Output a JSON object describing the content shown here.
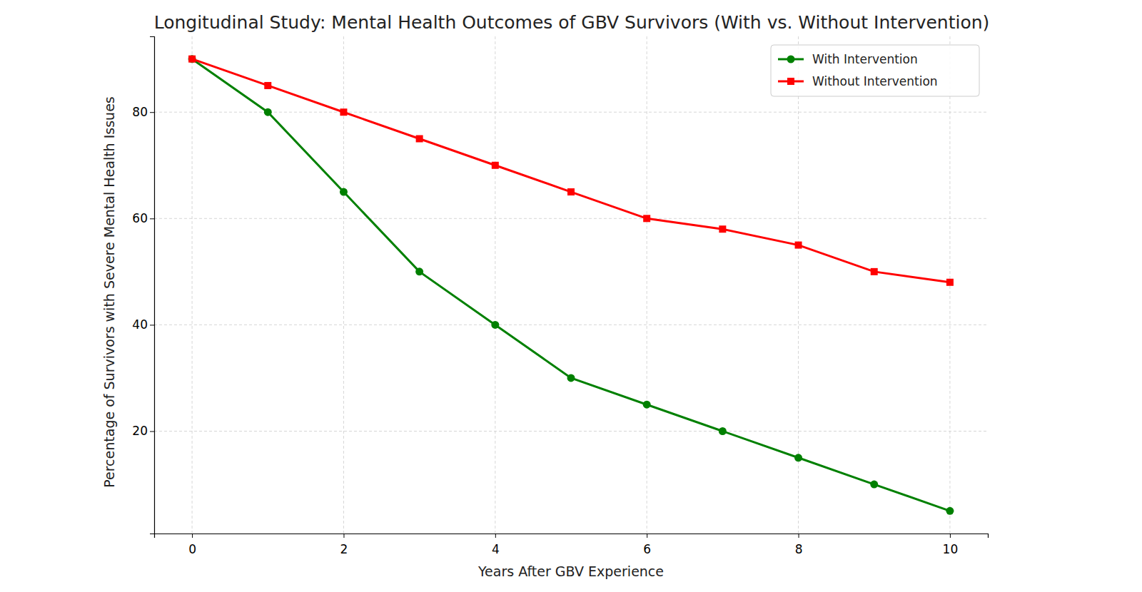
{
  "chart_data": {
    "type": "line",
    "title": "Longitudinal Study: Mental Health Outcomes of GBV Survivors (With vs. Without Intervention)",
    "x_label": "Years After GBV Experience",
    "y_label": "Percentage of Survivors with Severe Mental Health Issues",
    "x": [
      0,
      1,
      2,
      3,
      4,
      5,
      6,
      7,
      8,
      9,
      10
    ],
    "series": [
      {
        "name": "With Intervention",
        "color": "#008000",
        "marker": "circle",
        "line_style": "solid",
        "values": [
          90,
          80,
          65,
          50,
          40,
          30,
          25,
          20,
          15,
          10,
          5
        ]
      },
      {
        "name": "Without Intervention",
        "color": "#ff0000",
        "marker": "square",
        "line_style": "solid",
        "values": [
          90,
          85,
          80,
          75,
          70,
          65,
          60,
          58,
          55,
          50,
          48
        ]
      }
    ],
    "xlim": [
      -0.5,
      10.5
    ],
    "ylim": [
      0.75,
      94.25
    ],
    "xticks": [
      0,
      2,
      4,
      6,
      8,
      10
    ],
    "yticks": [
      20,
      40,
      60,
      80
    ],
    "grid": true,
    "legend": "upper right"
  }
}
